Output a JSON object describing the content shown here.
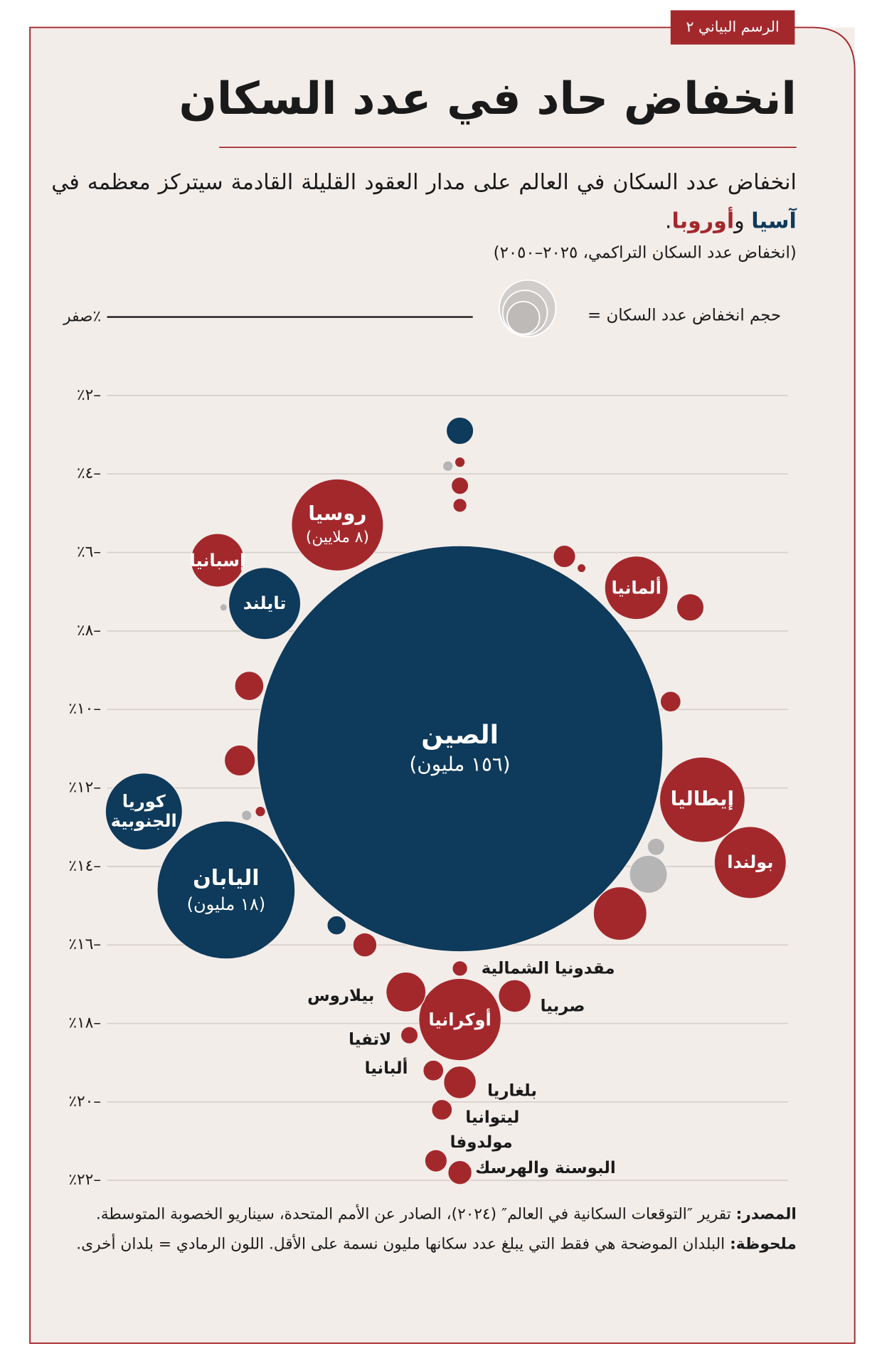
{
  "chart_data": {
    "type": "bubble",
    "tag": "الرسم البياني ٢",
    "title": "انخفاض حاد في عدد السكان",
    "subtitle": "انخفاض عدد السكان في العالم على مدار العقود القليلة القادمة سيتركز معظمه في",
    "subtitle_conj": "و",
    "subtitle_end": ".",
    "unit_note": "(انخفاض عدد السكان التراكمي، ٢٠٢٥–٢٠٥٠)",
    "size_legend": "حجم انخفاض عدد السكان =",
    "source_label": "المصدر:",
    "source": "تقرير ″التوقعات السكانية في العالم″ (٢٠٢٤)، الصادر عن الأمم المتحدة، سيناريو الخصوبة المتوسطة.",
    "note_label": "ملحوظة:",
    "note": "البلدان الموضحة هي فقط التي يبلغ عدد سكانها مليون نسمة على الأقل. اللون الرمادي = بلدان أخرى.",
    "ylim": [
      -22,
      0
    ],
    "yticks": [
      {
        "value": 0,
        "label": "صفر٪"
      },
      {
        "value": -2,
        "label": "٪٢–"
      },
      {
        "value": -4,
        "label": "٪٤–"
      },
      {
        "value": -6,
        "label": "٪٦–"
      },
      {
        "value": -8,
        "label": "٪٨–"
      },
      {
        "value": -10,
        "label": "٪١٠–"
      },
      {
        "value": -12,
        "label": "٪١٢–"
      },
      {
        "value": -14,
        "label": "٪١٤–"
      },
      {
        "value": -16,
        "label": "٪١٦–"
      },
      {
        "value": -18,
        "label": "٪١٨–"
      },
      {
        "value": -20,
        "label": "٪٢٠–"
      },
      {
        "value": -22,
        "label": "٪٢٢–"
      }
    ],
    "grid": true,
    "series": [
      {
        "name": "آسيا",
        "color": "#0e3a5b",
        "labels": [
          "الصين",
          "اليابان",
          "كوريا الجنوبية",
          "تايلند",
          null,
          null
        ],
        "values": [
          -11.0,
          -14.6,
          -12.6,
          -7.3,
          -2.9,
          -15.5
        ],
        "sizes": [
          156,
          18,
          5.6,
          4.9,
          0.7,
          0.34
        ],
        "size_labels": [
          "(١٥٦ مليون)",
          "(١٨ مليون)",
          null,
          null,
          null,
          null
        ]
      },
      {
        "name": "أوروبا",
        "color": "#a3282c",
        "labels": [
          "روسيا",
          "إسبانيا",
          "ألمانيا",
          "إيطاليا",
          "بولندا",
          "أوكرانيا",
          "مقدونيا الشمالية",
          "بيلاروس",
          "صربيا",
          "لاتفيا",
          "ألبانيا",
          "بلغاريا",
          "ليتوانيا",
          "مولدوفا",
          "البوسنة والهرسك",
          null,
          null,
          null,
          null,
          null,
          null,
          null,
          null,
          null,
          null,
          null,
          null
        ],
        "values": [
          -5.3,
          -6.2,
          -6.9,
          -12.3,
          -13.9,
          -17.9,
          -16.6,
          -17.2,
          -17.3,
          -18.3,
          -19.2,
          -19.5,
          -20.2,
          -21.5,
          -21.8,
          -3.7,
          -4.3,
          -4.8,
          -6.1,
          -6.4,
          -7.4,
          -9.4,
          -9.8,
          -11.3,
          -12.6,
          -15.2,
          -16.0
        ],
        "sizes": [
          8,
          2.7,
          3.8,
          6.9,
          4.9,
          6.4,
          0.22,
          1.5,
          1.0,
          0.28,
          0.4,
          1.0,
          0.4,
          0.47,
          0.54,
          0.1,
          0.28,
          0.18,
          0.47,
          0.07,
          0.7,
          0.8,
          0.4,
          0.9,
          0.1,
          2.7,
          0.54
        ],
        "size_labels": [
          "(٨ ملايين)",
          null,
          null,
          null,
          null,
          null,
          null,
          null,
          null,
          null,
          null,
          null,
          null,
          null,
          null,
          null,
          null,
          null,
          null,
          null,
          null,
          null,
          null,
          null,
          null,
          null,
          null
        ]
      },
      {
        "color": "#b5b5b5",
        "labels": [
          null,
          null,
          null,
          null,
          null
        ],
        "values": [
          -3.8,
          -7.4,
          -12.7,
          -13.5,
          -14.2
        ],
        "sizes": [
          0.1,
          0.05,
          0.1,
          0.28,
          1.35
        ],
        "size_labels": [
          null,
          null,
          null,
          null,
          null
        ]
      }
    ]
  }
}
